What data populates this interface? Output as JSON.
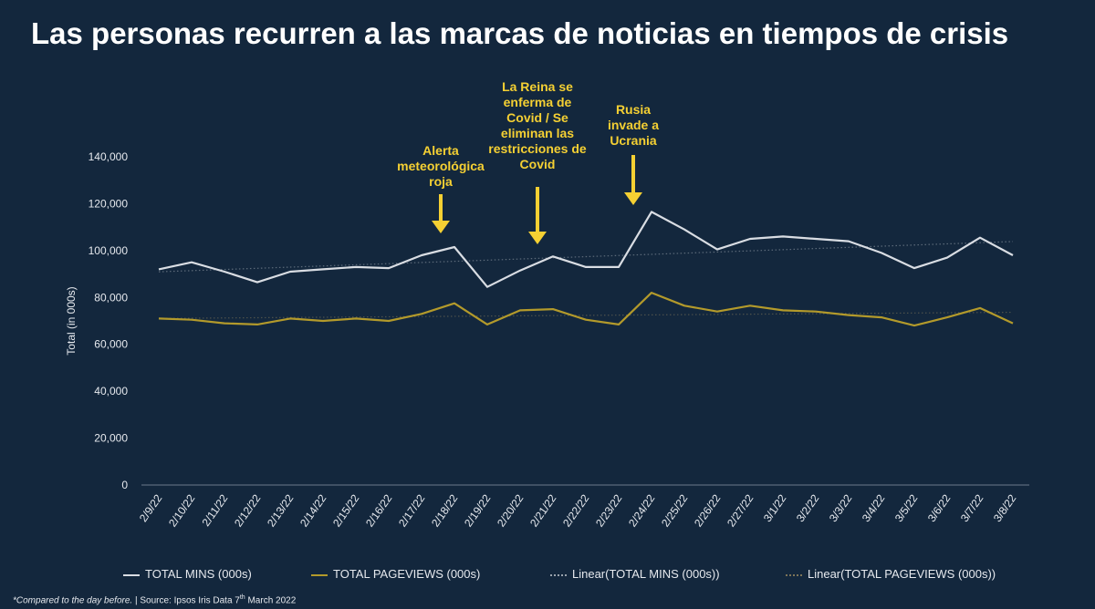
{
  "title": "Las personas recurren a las marcas de noticias en tiempos de crisis",
  "footnote": {
    "italic": "*Compared to the day before.",
    "rest": " | Source: Ipsos Iris Data 7",
    "sup": "th",
    "end": " March 2022"
  },
  "colors": {
    "background": "#13273d",
    "mins": "#d9dde3",
    "pageviews": "#b39a2b",
    "annotation": "#f5d033"
  },
  "chart_data": {
    "type": "line",
    "ylabel": "Total (in 000s)",
    "ylim": [
      0,
      140000
    ],
    "yticks": [
      "0",
      "20,000",
      "40,000",
      "60,000",
      "80,000",
      "100,000",
      "120,000",
      "140,000"
    ],
    "yticks_values": [
      0,
      20000,
      40000,
      60000,
      80000,
      100000,
      120000,
      140000
    ],
    "categories": [
      "2/9/22",
      "2/10/22",
      "2/11/22",
      "2/12/22",
      "2/13/22",
      "2/14/22",
      "2/15/22",
      "2/16/22",
      "2/17/22",
      "2/18/22",
      "2/19/22",
      "2/20/22",
      "2/21/22",
      "2/22/22",
      "2/23/22",
      "2/24/22",
      "2/25/22",
      "2/26/22",
      "2/27/22",
      "3/1/22",
      "3/2/22",
      "3/3/22",
      "3/4/22",
      "3/5/22",
      "3/6/22",
      "3/7/22",
      "3/8/22"
    ],
    "series": [
      {
        "name": "TOTAL MINS (000s)",
        "values": [
          92000,
          95000,
          91000,
          86500,
          91000,
          92000,
          93000,
          92500,
          98000,
          101500,
          84500,
          91500,
          97500,
          93000,
          93000,
          116500,
          109000,
          100500,
          105000,
          106000,
          105000,
          104000,
          99000,
          92500,
          97000,
          105500,
          98000
        ]
      },
      {
        "name": "TOTAL PAGEVIEWS (000s)",
        "values": [
          71000,
          70500,
          69000,
          68500,
          71000,
          70000,
          71000,
          70000,
          73000,
          77500,
          68500,
          74500,
          75000,
          70500,
          68500,
          82000,
          76500,
          74000,
          76500,
          74500,
          74000,
          72500,
          71500,
          68000,
          71500,
          75500,
          69000
        ]
      }
    ],
    "legend": [
      "TOTAL MINS (000s)",
      "TOTAL PAGEVIEWS (000s)",
      "Linear(TOTAL MINS (000s))",
      "Linear(TOTAL PAGEVIEWS (000s))"
    ],
    "legend_position": "bottom",
    "grid": false,
    "annotations": [
      {
        "lines": [
          "Alerta",
          "meteorológica",
          "roja"
        ],
        "x": "2/18/22"
      },
      {
        "lines": [
          "La Reina se",
          "enferma de",
          "Covid  / Se",
          "eliminan las",
          "restricciones de",
          "Covid"
        ],
        "x": "2/21/22"
      },
      {
        "lines": [
          "Rusia",
          "invade a",
          "Ucrania"
        ],
        "x": "2/24/22"
      }
    ]
  }
}
